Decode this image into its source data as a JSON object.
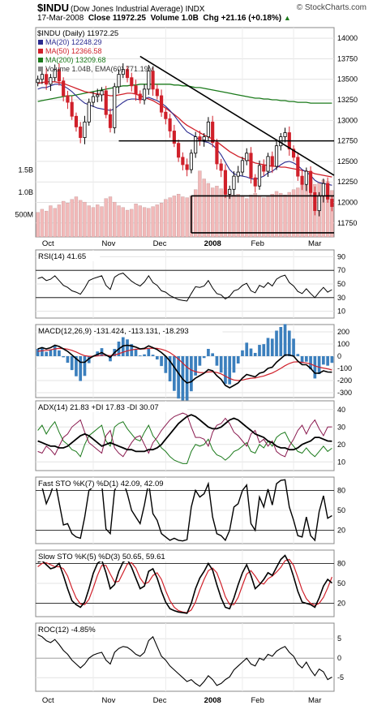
{
  "header": {
    "symbol": "$INDU",
    "name": "(Dow Jones Industrial Average) INDX",
    "watermark": "© StockCharts.com",
    "date": "17-Mar-2008",
    "close": "Close 11972.25",
    "volume": "Volume 1.0B",
    "change": "Chg +21.16 (+0.18%)",
    "change_arrow": "▲"
  },
  "colors": {
    "up": "#000000",
    "down": "#d0202a",
    "ma20": "#2a2a8f",
    "ma50": "#d0202a",
    "ma200": "#1b7a1b",
    "vol": "#f2b9b9",
    "macdhist": "#3b7fbd",
    "adxplus": "#1b7a1b",
    "adxminus": "#8a1a4f"
  },
  "chart_data": [
    {
      "type": "candlestick",
      "title": "$INDU (Daily) 11972.25",
      "legend": [
        "MA(20) 12248.29",
        "MA(50) 12366.58",
        "MA(200) 13209.68",
        "Volume 1.04B, EMA(60) 771.19M"
      ],
      "y_ticks": [
        14000,
        13750,
        13500,
        13250,
        13000,
        12750,
        12500,
        12250,
        12000,
        11750
      ],
      "ylim": [
        11580,
        14130
      ],
      "volume_ticks": [
        "1.5B",
        "1.0B",
        "500M"
      ],
      "x_labels": [
        "Oct",
        "Nov",
        "Dec",
        "2008",
        "Feb",
        "Mar"
      ],
      "close": [
        13500,
        13560,
        13440,
        13520,
        13620,
        13480,
        13300,
        13220,
        13050,
        12920,
        12790,
        12980,
        13220,
        13290,
        13310,
        13360,
        13070,
        12910,
        13410,
        13560,
        13620,
        13520,
        13420,
        13320,
        13250,
        13380,
        13600,
        13380,
        13300,
        13100,
        13020,
        12870,
        12720,
        12550,
        12460,
        12400,
        12600,
        12800,
        12760,
        12800,
        12980,
        12730,
        12470,
        12390,
        12100,
        12160,
        12320,
        12370,
        12510,
        12600,
        12300,
        12200,
        12450,
        12380,
        12560,
        12440,
        12690,
        12800,
        12850,
        12650,
        12550,
        12320,
        12220,
        12380,
        12120,
        11900,
        12080,
        12230,
        12040,
        11950
      ],
      "ma20": [
        13380,
        13400,
        13400,
        13420,
        13440,
        13440,
        13420,
        13390,
        13350,
        13300,
        13250,
        13210,
        13190,
        13170,
        13150,
        13140,
        13130,
        13120,
        13140,
        13180,
        13220,
        13250,
        13260,
        13260,
        13250,
        13260,
        13280,
        13260,
        13240,
        13210,
        13170,
        13120,
        13060,
        12990,
        12920,
        12860,
        12830,
        12800,
        12760,
        12740,
        12730,
        12700,
        12650,
        12580,
        12490,
        12400,
        12350,
        12330,
        12320,
        12310,
        12290,
        12280,
        12300,
        12320,
        12360,
        12380,
        12420,
        12460,
        12490,
        12500,
        12480,
        12450,
        12400,
        12370,
        12330,
        12270,
        12240,
        12230,
        12220,
        12210
      ],
      "ma50": [
        13450,
        13460,
        13470,
        13470,
        13470,
        13460,
        13450,
        13430,
        13410,
        13390,
        13370,
        13350,
        13340,
        13330,
        13320,
        13320,
        13310,
        13300,
        13300,
        13310,
        13320,
        13330,
        13330,
        13320,
        13300,
        13280,
        13260,
        13240,
        13210,
        13180,
        13150,
        13110,
        13070,
        13030,
        12980,
        12940,
        12910,
        12880,
        12850,
        12820,
        12800,
        12770,
        12740,
        12700,
        12660,
        12620,
        12590,
        12560,
        12540,
        12520,
        12500,
        12480,
        12470,
        12460,
        12450,
        12440,
        12440,
        12430,
        12430,
        12420,
        12410,
        12400,
        12390,
        12380,
        12370,
        12350,
        12340,
        12330,
        12320,
        12310
      ],
      "ma200": [
        13230,
        13240,
        13250,
        13260,
        13270,
        13280,
        13290,
        13300,
        13300,
        13310,
        13320,
        13330,
        13340,
        13350,
        13360,
        13370,
        13380,
        13390,
        13400,
        13410,
        13420,
        13420,
        13430,
        13430,
        13440,
        13440,
        13440,
        13440,
        13440,
        13440,
        13440,
        13440,
        13430,
        13430,
        13420,
        13420,
        13410,
        13400,
        13400,
        13390,
        13380,
        13370,
        13360,
        13350,
        13340,
        13330,
        13320,
        13310,
        13300,
        13290,
        13280,
        13270,
        13270,
        13260,
        13260,
        13250,
        13250,
        13240,
        13240,
        13230,
        13230,
        13220,
        13220,
        13220,
        13210,
        13210,
        13210,
        13210,
        13210,
        13210
      ],
      "volume_b": [
        0.55,
        0.62,
        0.58,
        0.7,
        0.64,
        0.72,
        0.8,
        0.76,
        0.84,
        0.9,
        0.82,
        0.78,
        0.7,
        0.66,
        0.72,
        0.68,
        0.86,
        0.9,
        0.78,
        0.7,
        0.66,
        0.6,
        0.62,
        0.74,
        0.7,
        0.66,
        0.64,
        0.68,
        0.72,
        0.76,
        0.84,
        0.88,
        0.92,
        0.96,
        0.9,
        0.88,
        0.92,
        1.06,
        1.48,
        1.3,
        1.2,
        1.1,
        1.14,
        1.08,
        1.02,
        0.98,
        0.94,
        0.96,
        0.9,
        0.86,
        0.94,
        0.98,
        0.92,
        0.88,
        0.9,
        0.96,
        1.02,
        0.98,
        0.94,
        1.0,
        1.06,
        1.1,
        1.2,
        1.16,
        1.3,
        1.18,
        1.22,
        1.28,
        1.24,
        1.04
      ],
      "annotations": [
        "downtrend line",
        "support 12750",
        "support 12080",
        "support 11630"
      ]
    },
    {
      "type": "line",
      "title": "RSI(14) 41.65",
      "y_ticks": [
        90,
        70,
        50,
        30,
        10
      ],
      "ylim": [
        0,
        100
      ],
      "values": [
        58,
        60,
        55,
        57,
        62,
        55,
        48,
        45,
        40,
        38,
        35,
        44,
        55,
        58,
        60,
        62,
        48,
        42,
        60,
        64,
        66,
        60,
        54,
        50,
        47,
        53,
        62,
        52,
        48,
        40,
        38,
        33,
        30,
        27,
        26,
        25,
        36,
        46,
        45,
        47,
        55,
        44,
        36,
        34,
        28,
        32,
        40,
        42,
        48,
        51,
        40,
        37,
        48,
        45,
        52,
        47,
        57,
        61,
        63,
        52,
        47,
        39,
        36,
        43,
        36,
        30,
        38,
        45,
        38,
        41.65
      ]
    },
    {
      "type": "line",
      "title": "MACD(12,26,9) -131.424, -113.131, -18.293",
      "y_ticks": [
        200,
        100,
        0,
        -100,
        -200,
        -300
      ],
      "ylim": [
        -340,
        260
      ],
      "macd": [
        60,
        70,
        60,
        70,
        90,
        80,
        60,
        40,
        10,
        -20,
        -50,
        -50,
        -20,
        0,
        15,
        30,
        10,
        -10,
        30,
        60,
        85,
        90,
        85,
        75,
        60,
        65,
        85,
        70,
        55,
        30,
        0,
        -40,
        -90,
        -140,
        -190,
        -220,
        -210,
        -180,
        -160,
        -140,
        -110,
        -120,
        -160,
        -190,
        -240,
        -260,
        -240,
        -220,
        -180,
        -150,
        -160,
        -170,
        -140,
        -130,
        -100,
        -90,
        -50,
        -20,
        10,
        10,
        0,
        -40,
        -70,
        -70,
        -100,
        -140,
        -140,
        -120,
        -130,
        -131.424
      ],
      "signal": [
        40,
        45,
        48,
        52,
        60,
        64,
        63,
        58,
        48,
        35,
        18,
        4,
        -1,
        -1,
        2,
        8,
        8,
        4,
        10,
        20,
        33,
        44,
        52,
        57,
        58,
        60,
        65,
        66,
        64,
        57,
        46,
        29,
        5,
        -24,
        -57,
        -90,
        -114,
        -127,
        -134,
        -135,
        -130,
        -128,
        -134,
        -145,
        -164,
        -183,
        -195,
        -200,
        -196,
        -187,
        -181,
        -179,
        -171,
        -163,
        -150,
        -138,
        -120,
        -100,
        -78,
        -60,
        -48,
        -46,
        -51,
        -55,
        -64,
        -79,
        -91,
        -97,
        -104,
        -113.131
      ]
    },
    {
      "type": "line",
      "title": "ADX(14) 21.83 +DI 17.83 -DI 30.07",
      "y_ticks": [
        40,
        30,
        20,
        10
      ],
      "ylim": [
        5,
        45
      ],
      "adx": [
        22,
        21,
        20,
        19,
        19,
        18,
        18,
        19,
        21,
        23,
        25,
        26,
        25,
        23,
        21,
        19,
        20,
        21,
        20,
        19,
        18,
        17,
        17,
        16,
        16,
        16,
        17,
        17,
        18,
        20,
        23,
        26,
        29,
        32,
        34,
        36,
        37,
        36,
        34,
        32,
        30,
        29,
        29,
        30,
        32,
        34,
        35,
        34,
        32,
        30,
        28,
        26,
        25,
        24,
        22,
        21,
        19,
        18,
        18,
        17,
        17,
        18,
        20,
        21,
        22,
        24,
        24,
        23,
        22,
        21.83
      ],
      "plus_di": [
        28,
        31,
        26,
        30,
        33,
        27,
        22,
        20,
        17,
        16,
        13,
        20,
        25,
        27,
        29,
        31,
        22,
        19,
        30,
        32,
        33,
        29,
        26,
        23,
        22,
        27,
        31,
        25,
        22,
        18,
        16,
        13,
        11,
        10,
        9,
        9,
        16,
        20,
        19,
        20,
        23,
        17,
        14,
        13,
        11,
        13,
        16,
        17,
        19,
        21,
        16,
        15,
        20,
        18,
        22,
        19,
        24,
        26,
        27,
        22,
        19,
        16,
        15,
        18,
        15,
        13,
        16,
        19,
        16,
        17.83
      ],
      "minus_di": [
        16,
        15,
        19,
        17,
        14,
        19,
        24,
        26,
        30,
        32,
        34,
        27,
        21,
        19,
        17,
        15,
        25,
        28,
        18,
        15,
        13,
        17,
        21,
        24,
        25,
        20,
        15,
        21,
        24,
        28,
        31,
        34,
        36,
        37,
        38,
        37,
        30,
        24,
        24,
        23,
        19,
        27,
        31,
        32,
        35,
        32,
        27,
        25,
        22,
        19,
        26,
        28,
        21,
        23,
        19,
        22,
        16,
        14,
        13,
        19,
        23,
        28,
        31,
        26,
        31,
        34,
        29,
        25,
        30,
        30.07
      ]
    },
    {
      "type": "line",
      "title": "Fast STO %K(7) %D(1) 42.09, 42.09",
      "y_ticks": [
        80,
        50,
        20
      ],
      "ylim": [
        0,
        100
      ],
      "values": [
        90,
        85,
        60,
        75,
        95,
        62,
        28,
        30,
        15,
        10,
        8,
        40,
        80,
        85,
        88,
        90,
        22,
        15,
        80,
        92,
        95,
        75,
        50,
        40,
        30,
        58,
        92,
        45,
        35,
        15,
        10,
        5,
        8,
        5,
        4,
        6,
        55,
        80,
        70,
        75,
        90,
        40,
        15,
        12,
        5,
        20,
        55,
        60,
        80,
        88,
        30,
        20,
        70,
        55,
        82,
        58,
        90,
        95,
        96,
        55,
        35,
        12,
        10,
        40,
        12,
        5,
        48,
        72,
        38,
        42.09
      ]
    },
    {
      "type": "line",
      "title": "Slow STO %K(5) %D(3) 50.65, 59.61",
      "y_ticks": [
        80,
        50,
        20
      ],
      "ylim": [
        0,
        100
      ],
      "k": [
        82,
        84,
        78,
        72,
        74,
        80,
        62,
        42,
        24,
        18,
        14,
        22,
        42,
        65,
        80,
        85,
        66,
        42,
        48,
        68,
        82,
        86,
        74,
        58,
        42,
        46,
        68,
        72,
        58,
        38,
        22,
        12,
        9,
        7,
        6,
        5,
        20,
        42,
        58,
        68,
        80,
        70,
        48,
        28,
        14,
        12,
        28,
        48,
        66,
        78,
        62,
        42,
        48,
        56,
        66,
        62,
        74,
        86,
        92,
        80,
        60,
        38,
        22,
        20,
        18,
        14,
        28,
        46,
        56,
        50.65
      ],
      "d": [
        75,
        80,
        81,
        78,
        75,
        75,
        72,
        61,
        43,
        28,
        19,
        18,
        26,
        43,
        62,
        77,
        77,
        64,
        52,
        53,
        66,
        79,
        81,
        73,
        58,
        49,
        52,
        62,
        66,
        56,
        39,
        24,
        14,
        9,
        7,
        6,
        10,
        22,
        40,
        56,
        69,
        73,
        66,
        49,
        30,
        18,
        18,
        29,
        47,
        64,
        69,
        61,
        51,
        49,
        57,
        61,
        67,
        74,
        84,
        86,
        77,
        59,
        40,
        27,
        20,
        17,
        20,
        29,
        43,
        59.61
      ]
    },
    {
      "type": "line",
      "title": "ROC(12) -4.85%",
      "y_ticks": [
        5,
        0,
        -5
      ],
      "ylim": [
        -8.5,
        9
      ],
      "values": [
        6,
        5.5,
        4.5,
        4,
        4.8,
        3.5,
        2,
        1,
        -0.5,
        -1.5,
        -2.5,
        -1.5,
        0,
        0.8,
        1.2,
        1.5,
        -0.5,
        -1.5,
        1.5,
        2.5,
        3,
        2.8,
        2,
        1,
        0.5,
        1.5,
        4.5,
        5.5,
        3,
        0.5,
        -0.5,
        -2,
        -3,
        -4,
        -5,
        -6,
        -5.5,
        -6.5,
        -7.2,
        -6,
        -4.5,
        -5.5,
        -7,
        -6.5,
        -5.5,
        -4.8,
        -3,
        -2,
        -1,
        0,
        -1.5,
        -2,
        0,
        -0.5,
        1,
        0.5,
        1.8,
        2.5,
        3,
        1.5,
        0.5,
        -1.5,
        -2.5,
        -1,
        -3,
        -4.5,
        -2.8,
        -3.5,
        -5.5,
        -4.85
      ]
    }
  ]
}
